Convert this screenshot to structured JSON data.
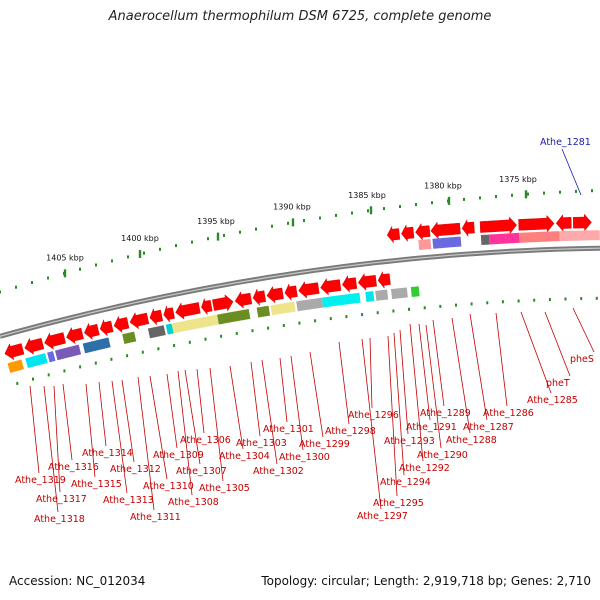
{
  "title": "Anaerocellum thermophilum DSM 6725, complete genome",
  "footer": {
    "accession_label": "Accession:",
    "accession": "NC_012034",
    "topology_label": "Topology:",
    "topology": "circular",
    "length_label": "Length:",
    "length": "2,919,718 bp",
    "genes_label": "Genes:",
    "genes": "2,710"
  },
  "colors": {
    "forward_gene": "#ff0000",
    "backbone": "#808080",
    "label_red": "#c40000",
    "label_blue": "#1a1aa8",
    "tick": "#228822"
  },
  "scale_labels": [
    "1405 kbp",
    "1400 kbp",
    "1395 kbp",
    "1390 kbp",
    "1385 kbp",
    "1380 kbp",
    "1375 kbp"
  ],
  "gene_labels": [
    {
      "name": "Athe_1281",
      "color": "blue"
    },
    {
      "name": "pheS",
      "color": "red"
    },
    {
      "name": "pheT",
      "color": "red"
    },
    {
      "name": "Athe_1285",
      "color": "red"
    },
    {
      "name": "Athe_1286",
      "color": "red"
    },
    {
      "name": "Athe_1287",
      "color": "red"
    },
    {
      "name": "Athe_1288",
      "color": "red"
    },
    {
      "name": "Athe_1289",
      "color": "red"
    },
    {
      "name": "Athe_1290",
      "color": "red"
    },
    {
      "name": "Athe_1291",
      "color": "red"
    },
    {
      "name": "Athe_1292",
      "color": "red"
    },
    {
      "name": "Athe_1293",
      "color": "red"
    },
    {
      "name": "Athe_1294",
      "color": "red"
    },
    {
      "name": "Athe_1295",
      "color": "red"
    },
    {
      "name": "Athe_1296",
      "color": "red"
    },
    {
      "name": "Athe_1297",
      "color": "red"
    },
    {
      "name": "Athe_1298",
      "color": "red"
    },
    {
      "name": "Athe_1299",
      "color": "red"
    },
    {
      "name": "Athe_1300",
      "color": "red"
    },
    {
      "name": "Athe_1301",
      "color": "red"
    },
    {
      "name": "Athe_1302",
      "color": "red"
    },
    {
      "name": "Athe_1303",
      "color": "red"
    },
    {
      "name": "Athe_1304",
      "color": "red"
    },
    {
      "name": "Athe_1305",
      "color": "red"
    },
    {
      "name": "Athe_1306",
      "color": "red"
    },
    {
      "name": "Athe_1307",
      "color": "red"
    },
    {
      "name": "Athe_1308",
      "color": "red"
    },
    {
      "name": "Athe_1309",
      "color": "red"
    },
    {
      "name": "Athe_1310",
      "color": "red"
    },
    {
      "name": "Athe_1311",
      "color": "red"
    },
    {
      "name": "Athe_1312",
      "color": "red"
    },
    {
      "name": "Athe_1313",
      "color": "red"
    },
    {
      "name": "Athe_1314",
      "color": "red"
    },
    {
      "name": "Athe_1315",
      "color": "red"
    },
    {
      "name": "Athe_1316",
      "color": "red"
    },
    {
      "name": "Athe_1317",
      "color": "red"
    },
    {
      "name": "Athe_1318",
      "color": "red"
    },
    {
      "name": "Athe_1319",
      "color": "red"
    }
  ]
}
